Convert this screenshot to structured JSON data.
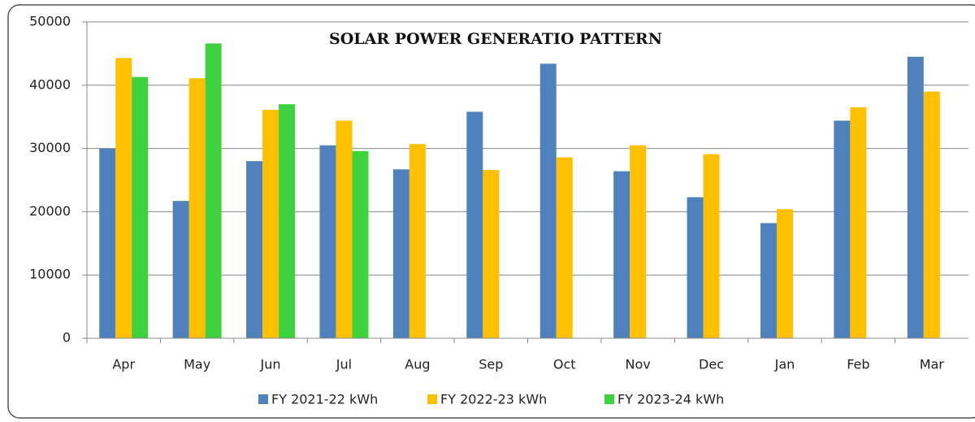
{
  "chart_data": {
    "type": "bar",
    "title": "SOLAR POWER GENERATIO PATTERN",
    "categories": [
      "Apr",
      "May",
      "Jun",
      "Jul",
      "Aug",
      "Sep",
      "Oct",
      "Nov",
      "Dec",
      "Jan",
      "Feb",
      "Mar"
    ],
    "series": [
      {
        "name": "FY 2021-22 kWh",
        "color": "#4f81bd",
        "values": [
          30000,
          21700,
          28000,
          30500,
          26700,
          35800,
          43400,
          26400,
          22300,
          18200,
          34400,
          44500
        ]
      },
      {
        "name": "FY 2022-23 kWh",
        "color": "#ffc000",
        "values": [
          44300,
          41100,
          36100,
          34400,
          30700,
          26600,
          28600,
          30500,
          29100,
          20400,
          36500,
          39000
        ]
      },
      {
        "name": "FY 2023-24 kWh",
        "color": "#3fd23f",
        "values": [
          41300,
          46600,
          37000,
          29600,
          null,
          null,
          null,
          null,
          null,
          null,
          null,
          null
        ]
      }
    ],
    "ylim": [
      0,
      50000
    ],
    "yticks": [
      0,
      10000,
      20000,
      30000,
      40000,
      50000
    ],
    "grid": true,
    "legend": "bottom"
  }
}
